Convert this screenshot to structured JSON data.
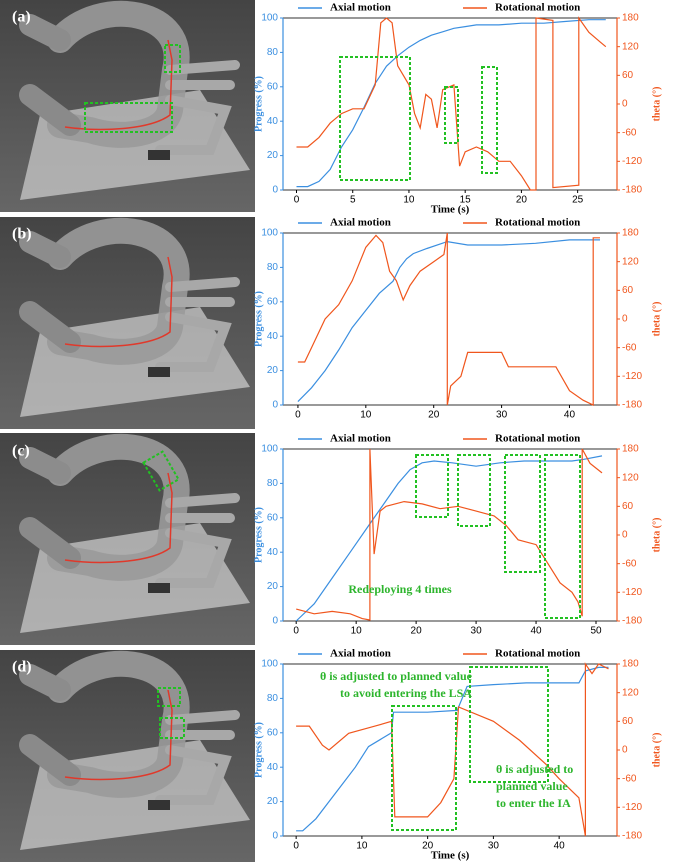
{
  "chart_data": [
    {
      "type": "line",
      "label": "(a)",
      "xlabel": "Time (s)",
      "ylabel": "Progress (%)",
      "y2label": "theta (°)",
      "xlim": [
        -1.2,
        28.5
      ],
      "xticks": [
        0,
        5,
        10,
        15,
        20,
        25
      ],
      "ylim": [
        0,
        100
      ],
      "yticks": [
        0,
        20,
        40,
        60,
        80,
        100
      ],
      "y2lim": [
        -180,
        180
      ],
      "y2ticks": [
        -180,
        -120,
        -60,
        0,
        60,
        120,
        180
      ],
      "series": [
        {
          "name": "Axial motion",
          "color": "#3b8fe0",
          "x": [
            0,
            1,
            2,
            3,
            4,
            5,
            6,
            7,
            8,
            9,
            10,
            11,
            12,
            13,
            14,
            15,
            16,
            18,
            20,
            22,
            24,
            26,
            27.5
          ],
          "values": [
            2,
            2,
            5,
            12,
            25,
            35,
            48,
            62,
            72,
            78,
            83,
            87,
            90,
            92,
            94,
            95,
            96,
            96,
            97,
            97,
            98,
            99,
            99
          ]
        },
        {
          "name": "Rotational motion",
          "color": "#f0561d",
          "axis": "y2",
          "x": [
            0,
            1,
            2,
            3,
            4,
            5,
            6,
            7,
            7.5,
            8,
            8.5,
            9,
            10,
            10.5,
            11,
            11.5,
            12,
            12.5,
            13,
            14,
            14.5,
            15,
            16,
            17,
            18,
            19,
            20,
            20.8,
            21.3,
            21.3,
            22.8,
            22.8,
            25.1,
            25.1,
            26,
            27,
            27.5
          ],
          "values": [
            -90,
            -90,
            -70,
            -40,
            -20,
            -10,
            -10,
            40,
            170,
            180,
            170,
            80,
            40,
            -20,
            -50,
            20,
            10,
            -50,
            30,
            40,
            -130,
            -100,
            -90,
            -100,
            -120,
            -120,
            -150,
            -180,
            -180,
            180,
            175,
            -175,
            -170,
            180,
            150,
            130,
            120
          ]
        }
      ]
    },
    {
      "type": "line",
      "label": "(b)",
      "ylabel": "Progress (%)",
      "y2label": "theta (°)",
      "xlim": [
        -2.2,
        47
      ],
      "xticks": [
        0,
        10,
        20,
        30,
        40
      ],
      "ylim": [
        0,
        100
      ],
      "yticks": [
        0,
        20,
        40,
        60,
        80,
        100
      ],
      "y2lim": [
        -180,
        180
      ],
      "y2ticks": [
        -180,
        -120,
        -60,
        0,
        60,
        120,
        180
      ],
      "series": [
        {
          "name": "Axial motion",
          "color": "#3b8fe0",
          "x": [
            0,
            2,
            4,
            6,
            8,
            10,
            12,
            14,
            15,
            16,
            17,
            19,
            22,
            25,
            30,
            35,
            40,
            44.5
          ],
          "values": [
            2,
            10,
            20,
            32,
            45,
            55,
            65,
            72,
            80,
            85,
            88,
            91,
            95,
            93,
            93,
            94,
            96,
            96
          ]
        },
        {
          "name": "Rotational motion",
          "color": "#f0561d",
          "axis": "y2",
          "x": [
            0,
            1,
            2,
            4,
            6,
            8,
            10,
            11.5,
            12.5,
            13.5,
            14.5,
            15.5,
            16.5,
            18,
            20,
            21.5,
            22,
            22,
            22.5,
            24,
            25,
            30,
            31,
            38,
            40,
            42,
            43.5,
            43.5,
            44.5
          ],
          "values": [
            -90,
            -90,
            -60,
            0,
            30,
            80,
            150,
            175,
            160,
            100,
            80,
            40,
            70,
            100,
            120,
            135,
            180,
            -180,
            -140,
            -120,
            -70,
            -70,
            -100,
            -100,
            -150,
            -170,
            -180,
            170,
            170
          ]
        }
      ]
    },
    {
      "type": "line",
      "label": "(c)",
      "ylabel": "Progress (%)",
      "y2label": "theta (°)",
      "annotations": [
        "Redeploying 4 times"
      ],
      "xlim": [
        -2.2,
        53.5
      ],
      "xticks": [
        0,
        10,
        20,
        30,
        40,
        50
      ],
      "ylim": [
        0,
        100
      ],
      "yticks": [
        0,
        20,
        40,
        60,
        80,
        100
      ],
      "y2lim": [
        -180,
        180
      ],
      "y2ticks": [
        -180,
        -120,
        -60,
        0,
        60,
        120,
        180
      ],
      "series": [
        {
          "name": "Axial motion",
          "color": "#3b8fe0",
          "x": [
            0,
            3,
            6,
            9,
            12,
            15,
            17,
            19,
            21,
            23,
            26,
            30,
            34,
            38,
            42,
            46,
            48,
            51
          ],
          "values": [
            0,
            10,
            25,
            40,
            55,
            70,
            80,
            88,
            92,
            93,
            92,
            90,
            92,
            93,
            93,
            93,
            94,
            96
          ]
        },
        {
          "name": "Rotational motion",
          "color": "#f0561d",
          "axis": "y2",
          "x": [
            0,
            3,
            6,
            9,
            11,
            12.3,
            12.3,
            13,
            14,
            15,
            18,
            21,
            24,
            27,
            30,
            33,
            35,
            37,
            40,
            42,
            44,
            46,
            47,
            47.7,
            47.7,
            49,
            51
          ],
          "values": [
            -155,
            -165,
            -160,
            -165,
            -175,
            -178,
            180,
            -40,
            50,
            60,
            70,
            65,
            55,
            60,
            50,
            40,
            20,
            -10,
            -20,
            -60,
            -100,
            -120,
            -140,
            -170,
            180,
            150,
            130
          ]
        }
      ]
    },
    {
      "type": "line",
      "label": "(d)",
      "xlabel": "Time (s)",
      "ylabel": "Progress (%)",
      "y2label": "theta (°)",
      "annotations": [
        "θ is adjusted to planned value",
        "to avoid entering the LSA",
        "θ is adjusted to",
        "planned value",
        "to enter the IA"
      ],
      "xlim": [
        -2,
        48.8
      ],
      "xticks": [
        0,
        10,
        20,
        30,
        40
      ],
      "ylim": [
        0,
        100
      ],
      "yticks": [
        0,
        20,
        40,
        60,
        80,
        100
      ],
      "y2lim": [
        -180,
        180
      ],
      "y2ticks": [
        -180,
        -120,
        -60,
        0,
        60,
        120,
        180
      ],
      "series": [
        {
          "name": "Axial motion",
          "color": "#3b8fe0",
          "x": [
            0,
            1,
            3,
            5,
            7,
            9,
            11,
            14.5,
            14.8,
            20,
            24.5,
            26,
            30,
            35,
            40,
            43,
            44,
            46,
            47.5
          ],
          "values": [
            3,
            3,
            10,
            20,
            30,
            40,
            52,
            60,
            72,
            72,
            73,
            87,
            88,
            89,
            89,
            89,
            96,
            98,
            98
          ]
        },
        {
          "name": "Rotational motion",
          "color": "#f0561d",
          "axis": "y2",
          "x": [
            0,
            2,
            4,
            5,
            8,
            12,
            14.5,
            15,
            17,
            20,
            22,
            24,
            24.7,
            30,
            34,
            38,
            40,
            43,
            44,
            44,
            45,
            46,
            47.5
          ],
          "values": [
            50,
            50,
            10,
            0,
            35,
            50,
            60,
            -140,
            -140,
            -140,
            -110,
            -60,
            90,
            60,
            20,
            -30,
            -60,
            -100,
            -180,
            180,
            160,
            180,
            170
          ]
        }
      ]
    }
  ]
}
